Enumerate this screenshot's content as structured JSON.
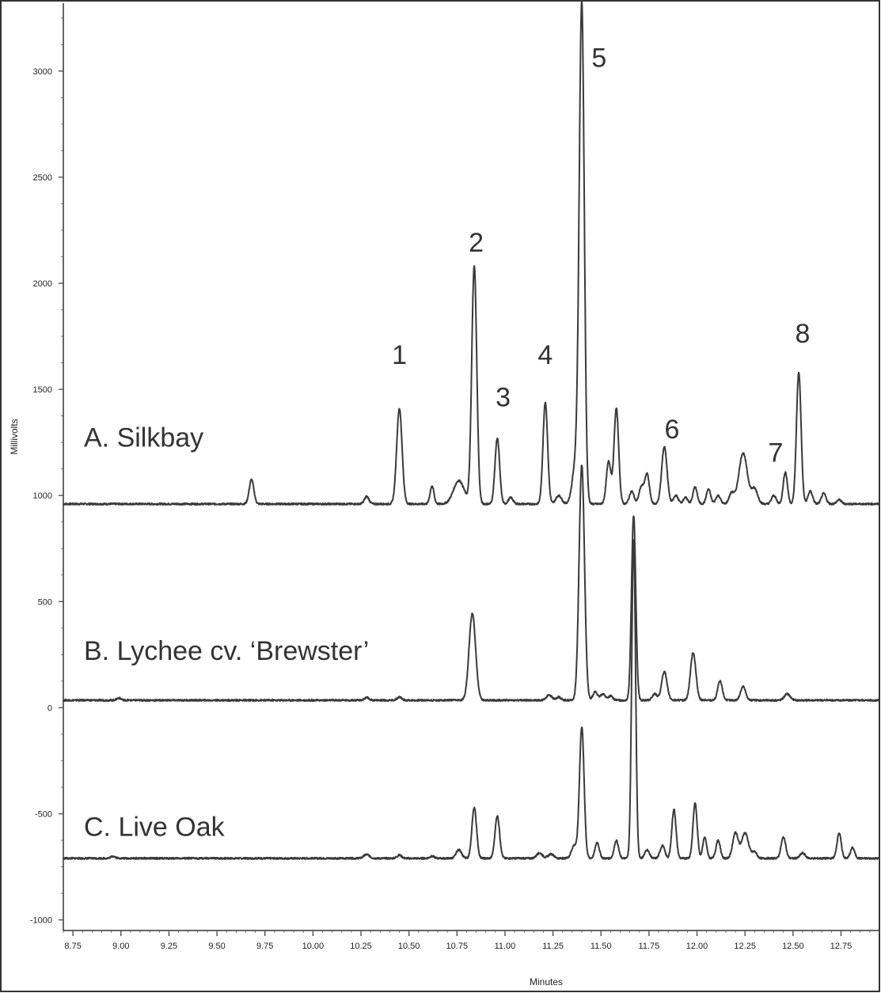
{
  "chart_data": {
    "type": "line",
    "xlabel": "Minutes",
    "ylabel": "Millivolts",
    "xlim": [
      8.7,
      12.95
    ],
    "ylim": [
      -1050,
      3320
    ],
    "x_ticks": [
      8.75,
      9.0,
      9.25,
      9.5,
      9.75,
      10.0,
      10.25,
      10.5,
      10.75,
      11.0,
      11.25,
      11.5,
      11.75,
      12.0,
      12.25,
      12.5,
      12.75
    ],
    "x_tick_labels": [
      "8.75",
      "9.00",
      "9.25",
      "9.50",
      "9.75",
      "10.00",
      "10.25",
      "10.50",
      "10.75",
      "11.00",
      "11.25",
      "11.50",
      "11.75",
      "12.00",
      "12.25",
      "12.50",
      "12.75"
    ],
    "y_ticks": [
      -1000,
      -500,
      0,
      500,
      1000,
      1500,
      2000,
      2500,
      3000
    ],
    "y_tick_labels": [
      "-1000",
      "-500",
      "0",
      "500",
      "1000",
      "1500",
      "2000",
      "2500",
      "3000"
    ],
    "grid": false,
    "series": [
      {
        "name": "A. Silkbay",
        "baseline": 960,
        "peaks": [
          [
            9.68,
            115,
            0.012
          ],
          [
            10.28,
            35,
            0.012
          ],
          [
            10.45,
            450,
            0.014
          ],
          [
            10.62,
            85,
            0.01
          ],
          [
            10.76,
            110,
            0.028
          ],
          [
            10.84,
            1120,
            0.013
          ],
          [
            10.96,
            310,
            0.012
          ],
          [
            11.03,
            30,
            0.012
          ],
          [
            11.21,
            480,
            0.012
          ],
          [
            11.28,
            40,
            0.015
          ],
          [
            11.37,
            200,
            0.018
          ],
          [
            11.4,
            2320,
            0.013
          ],
          [
            11.54,
            200,
            0.012
          ],
          [
            11.58,
            450,
            0.012
          ],
          [
            11.66,
            60,
            0.012
          ],
          [
            11.71,
            80,
            0.012
          ],
          [
            11.74,
            140,
            0.012
          ],
          [
            11.83,
            270,
            0.014
          ],
          [
            11.89,
            40,
            0.012
          ],
          [
            11.94,
            30,
            0.012
          ],
          [
            11.99,
            80,
            0.011
          ],
          [
            12.06,
            70,
            0.011
          ],
          [
            12.11,
            40,
            0.012
          ],
          [
            12.18,
            50,
            0.013
          ],
          [
            12.24,
            240,
            0.022
          ],
          [
            12.3,
            70,
            0.016
          ],
          [
            12.4,
            40,
            0.012
          ],
          [
            12.46,
            150,
            0.011
          ],
          [
            12.53,
            620,
            0.012
          ],
          [
            12.59,
            60,
            0.012
          ],
          [
            12.66,
            50,
            0.012
          ],
          [
            12.74,
            20,
            0.012
          ]
        ]
      },
      {
        "name": "B. Lychee cv. ‘Brewster’",
        "baseline": 35,
        "peaks": [
          [
            8.99,
            10,
            0.012
          ],
          [
            10.28,
            12,
            0.012
          ],
          [
            10.45,
            15,
            0.012
          ],
          [
            10.83,
            410,
            0.017
          ],
          [
            11.23,
            25,
            0.014
          ],
          [
            11.28,
            15,
            0.012
          ],
          [
            11.4,
            1110,
            0.014
          ],
          [
            11.47,
            40,
            0.012
          ],
          [
            11.51,
            30,
            0.012
          ],
          [
            11.55,
            20,
            0.012
          ],
          [
            11.67,
            870,
            0.011
          ],
          [
            11.78,
            30,
            0.012
          ],
          [
            11.83,
            135,
            0.014
          ],
          [
            11.98,
            225,
            0.014
          ],
          [
            12.12,
            90,
            0.012
          ],
          [
            12.24,
            65,
            0.013
          ],
          [
            12.47,
            30,
            0.015
          ]
        ]
      },
      {
        "name": "C. Live Oak",
        "baseline": -710,
        "peaks": [
          [
            8.96,
            10,
            0.012
          ],
          [
            10.28,
            18,
            0.015
          ],
          [
            10.45,
            15,
            0.012
          ],
          [
            10.62,
            10,
            0.012
          ],
          [
            10.76,
            40,
            0.014
          ],
          [
            10.84,
            240,
            0.012
          ],
          [
            10.96,
            200,
            0.012
          ],
          [
            11.18,
            25,
            0.015
          ],
          [
            11.24,
            20,
            0.015
          ],
          [
            11.36,
            60,
            0.014
          ],
          [
            11.4,
            620,
            0.012
          ],
          [
            11.48,
            75,
            0.011
          ],
          [
            11.58,
            85,
            0.011
          ],
          [
            11.67,
            1500,
            0.01
          ],
          [
            11.74,
            40,
            0.012
          ],
          [
            11.82,
            60,
            0.012
          ],
          [
            11.88,
            230,
            0.011
          ],
          [
            11.99,
            260,
            0.011
          ],
          [
            12.04,
            100,
            0.01
          ],
          [
            12.11,
            85,
            0.011
          ],
          [
            12.2,
            120,
            0.014
          ],
          [
            12.25,
            120,
            0.018
          ],
          [
            12.3,
            30,
            0.012
          ],
          [
            12.45,
            100,
            0.012
          ],
          [
            12.55,
            25,
            0.013
          ],
          [
            12.74,
            120,
            0.011
          ],
          [
            12.81,
            50,
            0.011
          ]
        ]
      }
    ],
    "peak_annotations": [
      {
        "label": "1",
        "x": 10.45
      },
      {
        "label": "2",
        "x": 10.85
      },
      {
        "label": "3",
        "x": 10.99
      },
      {
        "label": "4",
        "x": 11.21
      },
      {
        "label": "5",
        "x": 11.49
      },
      {
        "label": "6",
        "x": 11.87
      },
      {
        "label": "7",
        "x": 12.41
      },
      {
        "label": "8",
        "x": 12.55
      }
    ]
  }
}
